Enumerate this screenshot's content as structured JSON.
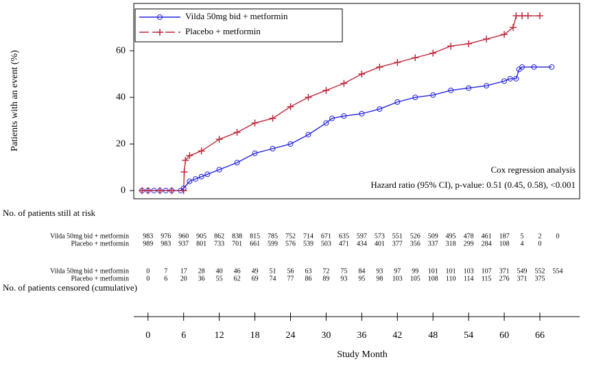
{
  "chart_data": {
    "type": "line",
    "ylabel": "Patients with an event (%)",
    "xlabel": "Study Month",
    "annotations": [
      "Cox regression analysis",
      "Hazard ratio (95% CI), p-value: 0.51  (0.45, 0.58), <0.001"
    ],
    "xlim": [
      -2.4,
      72.7
    ],
    "xticks": [
      0,
      6,
      12,
      18,
      24,
      30,
      36,
      42,
      48,
      54,
      60,
      66
    ],
    "ylim": [
      -3.5,
      80.3
    ],
    "yticks": [
      0,
      20,
      40,
      60
    ],
    "legend": "upper left",
    "series": [
      {
        "name": "Vilda 50mg bid + metformin",
        "color": "#2222dd",
        "marker": "circle",
        "x": [
          -1,
          0,
          1,
          2,
          3,
          4,
          5.5,
          6,
          7,
          8,
          9,
          10,
          12,
          15,
          18,
          21,
          24,
          27,
          30,
          31,
          33,
          36,
          39,
          42,
          45,
          48,
          51,
          54,
          57,
          60,
          61,
          62,
          62.5,
          63,
          65,
          68
        ],
        "values": [
          0,
          0,
          0,
          0,
          0,
          0,
          0,
          1,
          4,
          5,
          6,
          7,
          9,
          12,
          16,
          18,
          20,
          24,
          29,
          31,
          32,
          33,
          35,
          38,
          40,
          41,
          43,
          44,
          45,
          47,
          48,
          48,
          52,
          53,
          53,
          53
        ]
      },
      {
        "name": "Placebo + metformin",
        "color": "#c0283c",
        "marker": "plus",
        "x": [
          -1,
          0,
          2,
          4,
          6,
          6.1,
          6.3,
          7,
          9,
          12,
          15,
          18,
          21,
          24,
          27,
          30,
          33,
          36,
          39,
          42,
          45,
          48,
          51,
          54,
          57,
          60,
          61.5,
          62,
          63,
          64,
          66
        ],
        "values": [
          0,
          0,
          0,
          0,
          0,
          8,
          13,
          15,
          17,
          22,
          25,
          29,
          31,
          36,
          40,
          43,
          46,
          50,
          53,
          55,
          57,
          59,
          62,
          63,
          65,
          67,
          70,
          75,
          75,
          75,
          75
        ]
      }
    ],
    "at_risk": {
      "title": "No. of patients still at risk",
      "values": [
        [
          983,
          976,
          960,
          905,
          862,
          838,
          815,
          785,
          752,
          714,
          671,
          635,
          597,
          573,
          551,
          526,
          509,
          495,
          478,
          461,
          187,
          5,
          2,
          0
        ],
        [
          989,
          983,
          937,
          801,
          733,
          701,
          661,
          599,
          576,
          539,
          503,
          471,
          434,
          401,
          377,
          356,
          337,
          318,
          299,
          284,
          108,
          4,
          0
        ]
      ]
    },
    "censored": {
      "title": "No. of patients censored (cumulative)",
      "values": [
        [
          0,
          7,
          17,
          28,
          40,
          46,
          49,
          51,
          56,
          63,
          72,
          75,
          84,
          93,
          97,
          99,
          101,
          101,
          103,
          107,
          371,
          549,
          552,
          554
        ],
        [
          0,
          6,
          20,
          36,
          55,
          62,
          69,
          74,
          77,
          86,
          89,
          93,
          95,
          98,
          103,
          105,
          108,
          110,
          114,
          115,
          276,
          371,
          375
        ]
      ]
    }
  }
}
